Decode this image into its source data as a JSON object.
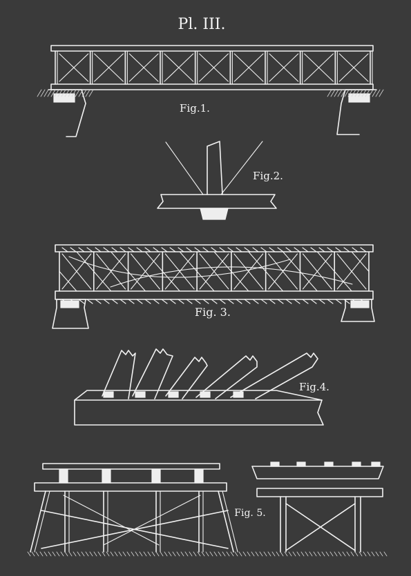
{
  "plate": {
    "title": "Pl. III.",
    "figures": [
      {
        "id": "fig1",
        "label": "Fig.1."
      },
      {
        "id": "fig2",
        "label": "Fig.2."
      },
      {
        "id": "fig3",
        "label": "Fig. 3."
      },
      {
        "id": "fig4",
        "label": "Fig.4."
      },
      {
        "id": "fig5",
        "label": "Fig. 5."
      }
    ]
  },
  "colors": {
    "background": "#3a3a3a",
    "ink": "#f2f2f2"
  }
}
